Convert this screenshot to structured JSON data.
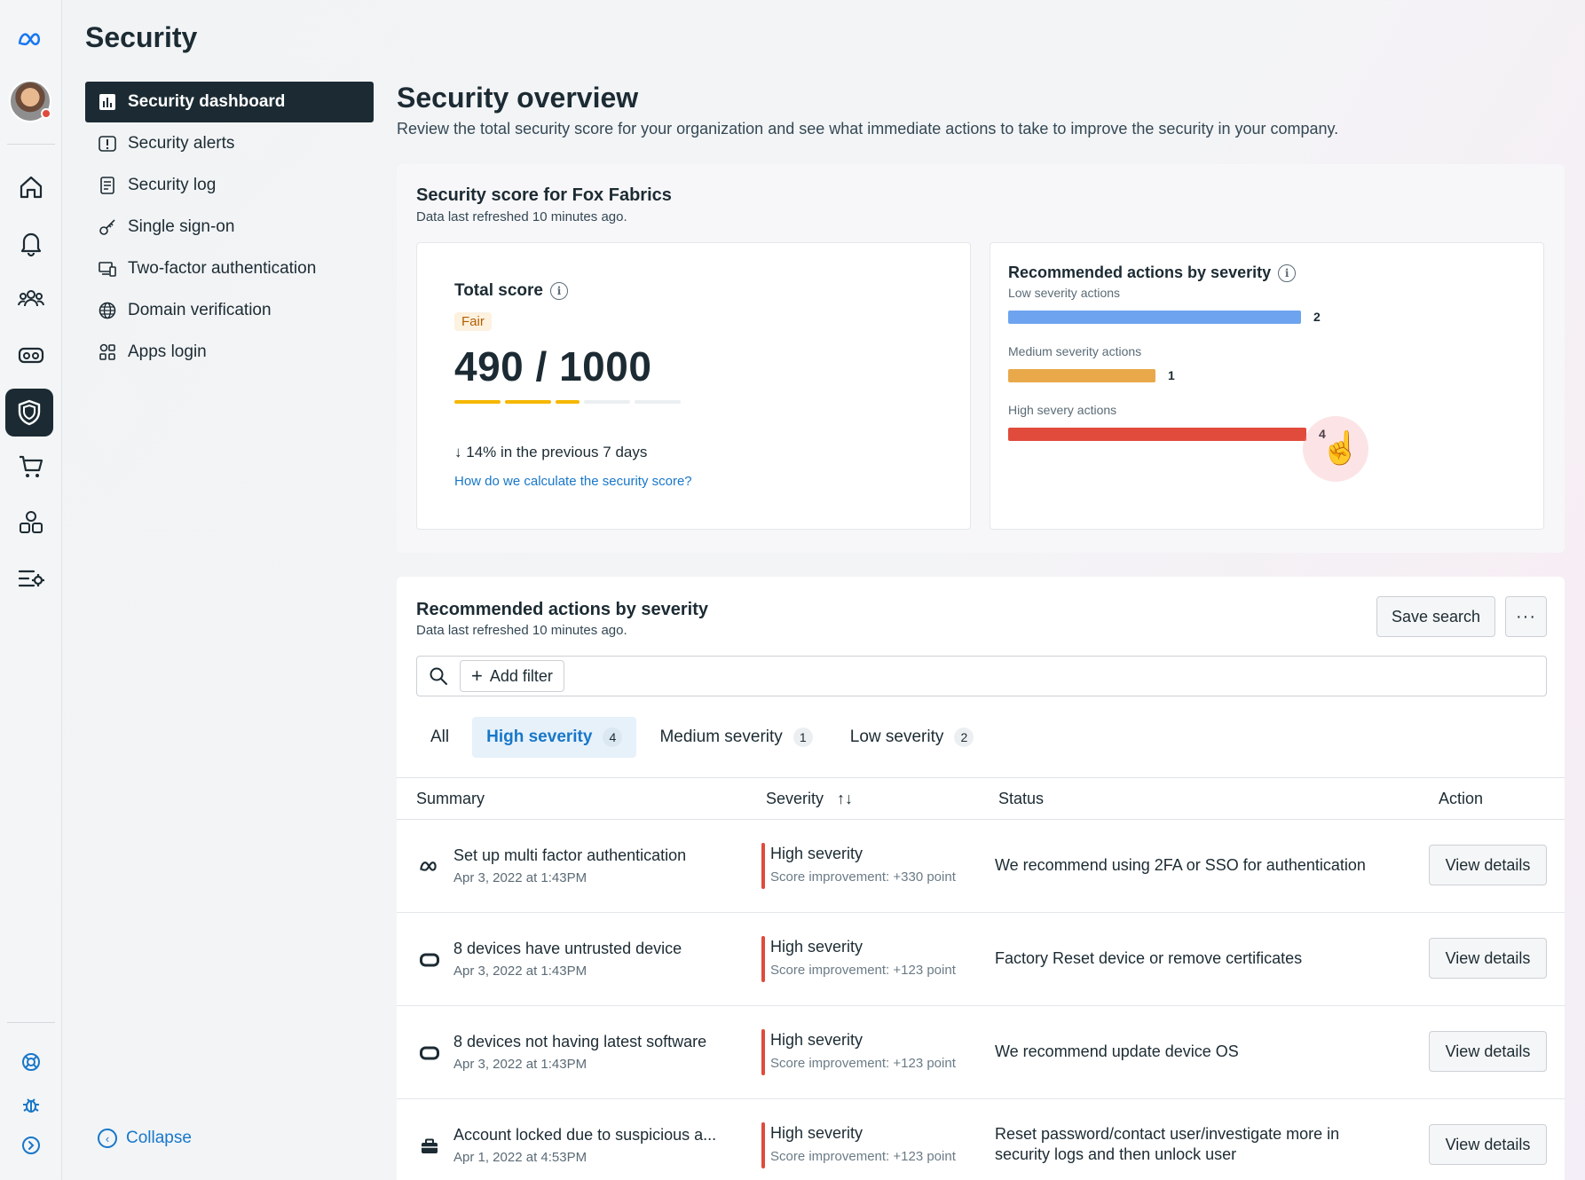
{
  "app": {
    "title": "Security"
  },
  "rail": {
    "icons": [
      "meta-logo-icon",
      "home-icon",
      "bell-icon",
      "people-icon",
      "vr-headset-icon",
      "shield-icon",
      "cart-icon",
      "apps-icon",
      "settings-list-icon",
      "help-icon",
      "bug-icon",
      "expand-icon"
    ]
  },
  "nav": {
    "items": [
      {
        "label": "Security dashboard",
        "icon": "chart-icon",
        "active": true
      },
      {
        "label": "Security alerts",
        "icon": "alert-icon"
      },
      {
        "label": "Security log",
        "icon": "log-icon"
      },
      {
        "label": "Single sign-on",
        "icon": "key-icon"
      },
      {
        "label": "Two-factor authentication",
        "icon": "devices-icon"
      },
      {
        "label": "Domain verification",
        "icon": "globe-icon"
      },
      {
        "label": "Apps login",
        "icon": "apps-icon"
      }
    ],
    "collapse_label": "Collapse"
  },
  "main": {
    "title": "Security overview",
    "subtitle": "Review the total security score for your organization and see what immediate actions to take to improve the security in your company."
  },
  "score_panel": {
    "title": "Security score for Fox Fabrics",
    "subtitle": "Data last refreshed 10 minutes ago.",
    "total_label": "Total score",
    "rating": "Fair",
    "score_text": "490 / 1000",
    "score_fraction": 0.49,
    "trend": "14% in the previous 7 days",
    "calc_link": "How do we calculate the security score?",
    "colors": {
      "fair_badge": "#fdf1df",
      "score_bar": "#f5b700"
    }
  },
  "severity_chart": {
    "title": "Recommended actions by severity",
    "rows": [
      {
        "label": "Low severity actions",
        "count": "2",
        "value": 2,
        "color": "#6ea4ef"
      },
      {
        "label": "Medium severity actions",
        "count": "1",
        "value": 1,
        "color": "#e9a94a"
      },
      {
        "label": "High severy actions",
        "count": "4",
        "value": 4,
        "color": "#e04b3c"
      }
    ]
  },
  "actions": {
    "title": "Recommended actions by severity",
    "subtitle": "Data last refreshed 10 minutes ago.",
    "save_search": "Save search",
    "more": "···",
    "add_filter": "Add filter",
    "tabs": [
      {
        "label": "All",
        "count": ""
      },
      {
        "label": "High severity",
        "count": "4",
        "active": true
      },
      {
        "label": "Medium severity",
        "count": "1"
      },
      {
        "label": "Low severity",
        "count": "2"
      }
    ],
    "columns": {
      "summary": "Summary",
      "severity": "Severity",
      "sort": "↑↓",
      "status": "Status",
      "action": "Action"
    },
    "rows": [
      {
        "icon": "meta-logo-icon",
        "title": "Set up multi factor authentication",
        "date": "Apr 3, 2022 at 1:43PM",
        "severity": "High severity",
        "improvement": "Score improvement: +330 point",
        "status": "We recommend using 2FA or SSO for authentication",
        "action": "View details"
      },
      {
        "icon": "vr-headset-icon",
        "title": "8 devices have untrusted device",
        "date": "Apr 3, 2022 at 1:43PM",
        "severity": "High severity",
        "improvement": "Score improvement: +123 point",
        "status": "Factory Reset device or remove certificates",
        "action": "View details"
      },
      {
        "icon": "vr-headset-icon",
        "title": "8 devices not having latest software",
        "date": "Apr 3, 2022 at 1:43PM",
        "severity": "High severity",
        "improvement": "Score improvement: +123 point",
        "status": "We recommend update device OS",
        "action": "View details"
      },
      {
        "icon": "briefcase-icon",
        "title": "Account locked due to suspicious a...",
        "date": "Apr 1, 2022 at 4:53PM",
        "severity": "High severity",
        "improvement": "Score improvement: +123 point",
        "status": "Reset password/contact user/investigate more in security logs and then unlock user",
        "action": "View details"
      }
    ]
  }
}
